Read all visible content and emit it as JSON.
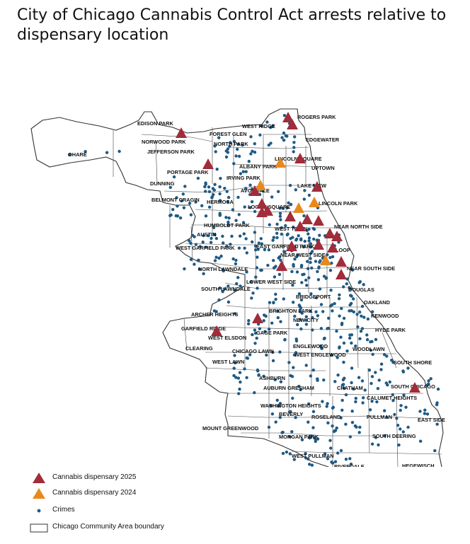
{
  "title": "City of Chicago Cannabis Control Act arrests relative to dispensary location",
  "colors": {
    "dispensary_2025": "#a12c3a",
    "dispensary_2024": "#e8891f",
    "crime": "#1f5a84",
    "boundary": "#333333"
  },
  "community_areas": [
    "ROGERS PARK",
    "WEST RIDGE",
    "EDISON PARK",
    "FOREST GLEN",
    "NORWOOD PARK",
    "NORTH PARK",
    "EDGEWATER",
    "OHARE",
    "JEFFERSON PARK",
    "LINCOLN SQUARE",
    "UPTOWN",
    "ALBANY PARK",
    "PORTAGE PARK",
    "IRVING PARK",
    "DUNNING",
    "LAKE VIEW",
    "AVONDALE",
    "BELMONT CRAGIN",
    "HERMOSA",
    "LINCOLN PARK",
    "LOGAN SQUARE",
    "NEAR NORTH SIDE",
    "HUMBOLDT PARK",
    "WEST TOWN",
    "AUSTIN",
    "WEST GARFIELD PARK",
    "EAST GARFIELD PARK",
    "NEAR WEST SIDE",
    "LOOP",
    "NORTH LAWNDALE",
    "NEAR SOUTH SIDE",
    "LOWER WEST SIDE",
    "SOUTH LAWNDALE",
    "DOUGLAS",
    "BRIDGEPORT",
    "OAKLAND",
    "KENWOOD",
    "ARCHER HEIGHTS",
    "BRIGHTON PARK",
    "NEW CITY",
    "HYDE PARK",
    "GARFIELD RIDGE",
    "GAGE PARK",
    "WEST ELSDON",
    "CLEARING",
    "CHICAGO LAWN",
    "ENGLEWOOD",
    "WOODLAWN",
    "WEST ENGLEWOOD",
    "WEST LAWN",
    "SOUTH SHORE",
    "ASHBURN",
    "AUBURN GRESHAM",
    "CHATHAM",
    "SOUTH CHICAGO",
    "CALUMET HEIGHTS",
    "WASHINGTON HEIGHTS",
    "BEVERLY",
    "ROSELAND",
    "PULLMAN",
    "EAST SIDE",
    "MOUNT GREENWOOD",
    "MORGAN PARK",
    "SOUTH DEERING",
    "WEST PULLMAN",
    "RIVERDALE",
    "HEGEWISCH"
  ],
  "legend": {
    "dispensary_2025": "Cannabis dispensary 2025",
    "dispensary_2024": "Cannabis dispensary 2024",
    "crimes": "Crimes",
    "boundary": "Chicago Community Area boundary"
  }
}
